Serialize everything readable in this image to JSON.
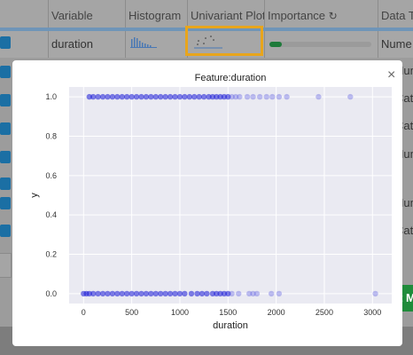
{
  "header": {
    "columns": [
      "",
      "Variable",
      "Histogram",
      "Univariant Plot",
      "Importance",
      "Data T"
    ],
    "refresh_icon": "refresh-icon"
  },
  "row1": {
    "variable": "duration",
    "data_type": "Nume"
  },
  "right_cells": [
    "Nume",
    "Categ",
    "Categ",
    "Nume",
    "Nume",
    "Categ"
  ],
  "green_button": {
    "label": "t M"
  },
  "modal": {
    "title": "Feature:duration",
    "close_label": "×"
  },
  "chart_data": {
    "type": "scatter",
    "title": "Feature:duration",
    "xlabel": "duration",
    "ylabel": "y",
    "xlim": [
      -150,
      3200
    ],
    "ylim": [
      -0.05,
      1.05
    ],
    "x_ticks": [
      0,
      500,
      1000,
      1500,
      2000,
      2500,
      3000
    ],
    "y_ticks": [
      0.0,
      0.2,
      0.4,
      0.6,
      0.8,
      1.0
    ],
    "x_tick_labels": [
      "0",
      "500",
      "1000",
      "1500",
      "2000",
      "2500",
      "3000"
    ],
    "y_tick_labels": [
      "0.0",
      "0.2",
      "0.4",
      "0.6",
      "0.8",
      "1.0"
    ],
    "grid": true,
    "colors": {
      "point": "#1515d6",
      "background": "#eaeaf2"
    },
    "series": [
      {
        "y": 0,
        "x": [
          0,
          30,
          60,
          100,
          150,
          200,
          250,
          300,
          350,
          400,
          450,
          500,
          550,
          600,
          650,
          700,
          750,
          800,
          850,
          900,
          950,
          1000,
          1050,
          1120,
          1180,
          1230,
          1280,
          1340,
          1380,
          1420,
          1460,
          1500,
          1540,
          1610,
          1720,
          1760,
          1800,
          1950,
          2030,
          3030
        ]
      },
      {
        "y": 1,
        "x": [
          60,
          100,
          150,
          200,
          250,
          300,
          350,
          400,
          450,
          500,
          550,
          600,
          650,
          700,
          750,
          800,
          850,
          900,
          950,
          1000,
          1050,
          1100,
          1150,
          1200,
          1250,
          1300,
          1340,
          1380,
          1420,
          1460,
          1500,
          1540,
          1580,
          1620,
          1700,
          1760,
          1830,
          1900,
          1960,
          2030,
          2110,
          2440,
          2770
        ]
      }
    ]
  }
}
